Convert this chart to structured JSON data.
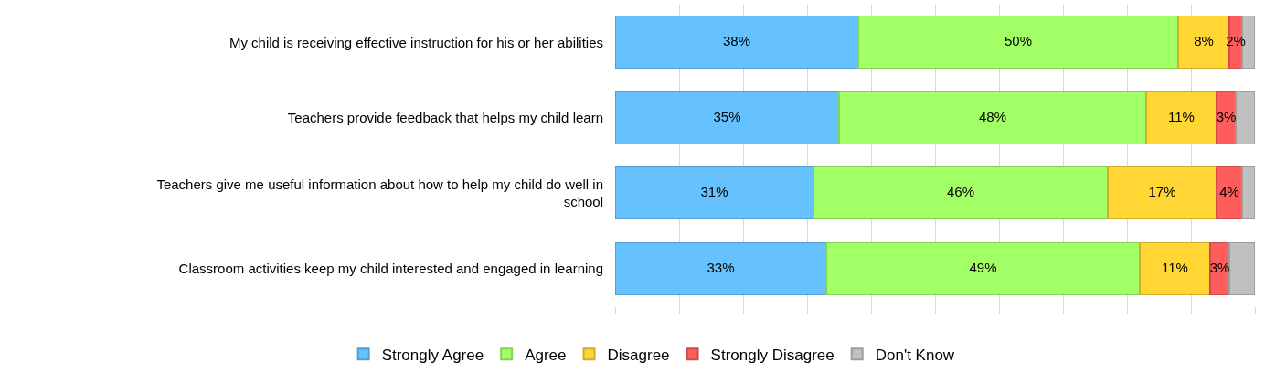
{
  "chart_data": {
    "type": "bar",
    "orientation": "horizontal",
    "stacked": true,
    "categories": [
      "My child is receiving effective instruction for his or her abilities",
      "Teachers provide feedback that helps my child learn",
      "Teachers give me useful information about how to help my child do well in school",
      "Classroom activities keep my child interested and engaged in learning"
    ],
    "series": [
      {
        "name": "Strongly Agree",
        "color": "#66c2ff",
        "values": [
          38,
          35,
          31,
          33
        ],
        "value_labels": [
          "38%",
          "35%",
          "31%",
          "33%"
        ]
      },
      {
        "name": "Agree",
        "color": "#a3ff66",
        "values": [
          50,
          48,
          46,
          49
        ],
        "value_labels": [
          "50%",
          "48%",
          "46%",
          "49%"
        ]
      },
      {
        "name": "Disagree",
        "color": "#ffd633",
        "values": [
          8,
          11,
          17,
          11
        ],
        "value_labels": [
          "8%",
          "11%",
          "17%",
          "11%"
        ]
      },
      {
        "name": "Strongly Disagree",
        "color": "#ff5c5c",
        "values": [
          2,
          3,
          4,
          3
        ],
        "value_labels": [
          "2%",
          "3%",
          "4%",
          "3%"
        ]
      },
      {
        "name": "Don't Know",
        "color": "#c0c0c0",
        "values": [
          2,
          3,
          2,
          4
        ],
        "value_labels": [
          null,
          null,
          null,
          null
        ]
      }
    ],
    "xlim": [
      0,
      100
    ],
    "xticks": [
      {
        "value": 0,
        "label": null
      },
      {
        "value": 10,
        "label": null
      },
      {
        "value": 20,
        "label": null
      },
      {
        "value": 30,
        "label": null
      },
      {
        "value": 40,
        "label": null
      },
      {
        "value": 50,
        "label": null
      },
      {
        "value": 60,
        "label": null
      },
      {
        "value": 70,
        "label": null
      },
      {
        "value": 80,
        "label": null
      },
      {
        "value": 90,
        "label": null
      },
      {
        "value": 100,
        "label": null
      }
    ],
    "tick_labels": "y",
    "grid": "x",
    "legend": "bottom"
  }
}
